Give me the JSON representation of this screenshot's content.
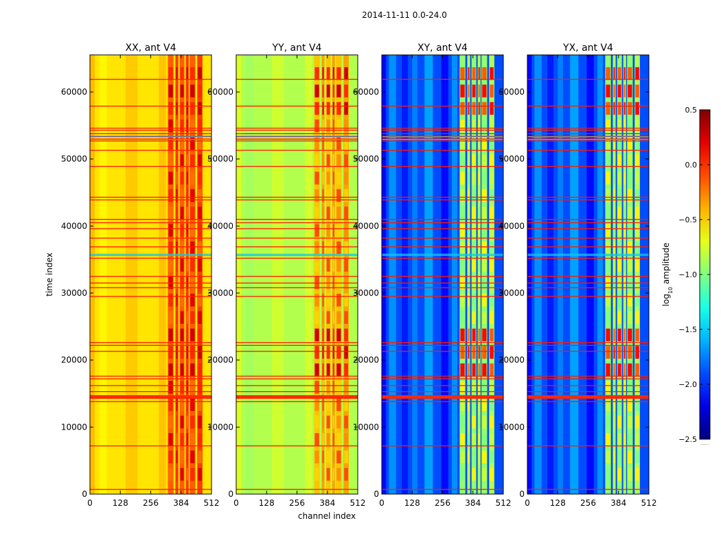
{
  "figure": {
    "suptitle": "2014-11-11 0.0-24.0"
  },
  "chart_data": {
    "type": "heatmap",
    "title": "2014-11-11 0.0-24.0",
    "xlabel": "channel index",
    "ylabel": "time index",
    "xlim": [
      0,
      512
    ],
    "ylim": [
      0,
      65536
    ],
    "x_ticks": [
      0,
      128,
      256,
      384,
      512
    ],
    "y_ticks": [
      0,
      10000,
      20000,
      30000,
      40000,
      50000,
      60000
    ],
    "panels": [
      {
        "name": "XX",
        "title": "XX, ant V4",
        "base_level": -0.55
      },
      {
        "name": "YY",
        "title": "YY, ant V4",
        "base_level": -0.85
      },
      {
        "name": "XY",
        "title": "XY, ant V4",
        "base_level": -1.9
      },
      {
        "name": "YX",
        "title": "YX, ant V4",
        "base_level": -1.9
      }
    ],
    "rfi_rows_time_index": [
      700,
      7200,
      13800,
      14300,
      14500,
      14700,
      15300,
      16200,
      17200,
      17600,
      21300,
      22200,
      22600,
      29500,
      30800,
      31500,
      32500,
      35200,
      35600,
      36900,
      38200,
      39600,
      40500,
      41000,
      43900,
      44300,
      48900,
      51300,
      52700,
      53000,
      53400,
      53800,
      54300,
      54600,
      57900,
      61900
    ],
    "band_channels": [
      [
        328,
        352
      ],
      [
        360,
        372
      ],
      [
        378,
        398
      ],
      [
        404,
        416
      ],
      [
        420,
        444
      ],
      [
        452,
        474
      ]
    ],
    "bright_time_ranges": [
      [
        17000,
        24000
      ],
      [
        56000,
        62000
      ]
    ],
    "colorbar": {
      "label": "log10 amplitude",
      "label_main": "log",
      "label_sub": "10",
      "label_tail": " amplitude",
      "range": [
        -2.5,
        0.5
      ],
      "ticks": [
        "0.5",
        "0.0",
        "−0.5",
        "−1.0",
        "−1.5",
        "−2.0",
        "−2.5"
      ],
      "tick_values": [
        0.5,
        0.0,
        -0.5,
        -1.0,
        -1.5,
        -2.0,
        -2.5
      ],
      "colormap": "jet",
      "extra_label": "......"
    }
  }
}
